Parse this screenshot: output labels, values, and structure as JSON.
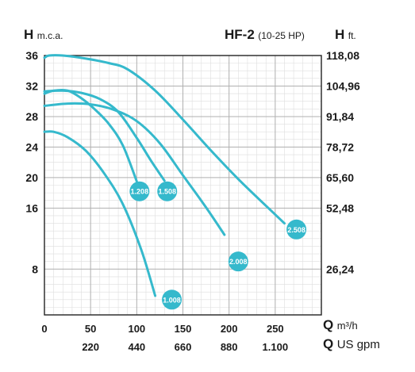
{
  "header": {
    "left_letter": "H",
    "left_unit": "m.c.a.",
    "model": "HF-2",
    "model_range": "(10-25 HP)",
    "right_letter": "H",
    "right_unit": "ft."
  },
  "axes_labels": {
    "q_letter": "Q",
    "q_unit_m3h": "m³/h",
    "q_unit_gpm": "US gpm"
  },
  "chart_data": {
    "type": "line",
    "title": "HF-2 (10-25 HP)",
    "xlabel": "Q m³/h",
    "ylabel": "H m.c.a.",
    "xlim": [
      0,
      300
    ],
    "ylim": [
      2,
      36
    ],
    "grid": true,
    "x_ticks": [
      {
        "value": 0,
        "label": "0"
      },
      {
        "value": 50,
        "label": "50"
      },
      {
        "value": 100,
        "label": "100"
      },
      {
        "value": 150,
        "label": "150"
      },
      {
        "value": 200,
        "label": "200"
      },
      {
        "value": 250,
        "label": "250"
      }
    ],
    "x2_ticks": [
      {
        "value": 50,
        "label": "220"
      },
      {
        "value": 100,
        "label": "440"
      },
      {
        "value": 150,
        "label": "660"
      },
      {
        "value": 200,
        "label": "880"
      },
      {
        "value": 250,
        "label": "1.100"
      }
    ],
    "y_ticks": [
      {
        "value": 36,
        "label": "36"
      },
      {
        "value": 32,
        "label": "32"
      },
      {
        "value": 28,
        "label": "28"
      },
      {
        "value": 24,
        "label": "24"
      },
      {
        "value": 20,
        "label": "20"
      },
      {
        "value": 16,
        "label": "16"
      },
      {
        "value": 8,
        "label": "8"
      }
    ],
    "y2_ticks": [
      {
        "value": 36,
        "label": "118,08"
      },
      {
        "value": 32,
        "label": "104,96"
      },
      {
        "value": 28,
        "label": "91,84"
      },
      {
        "value": 24,
        "label": "78,72"
      },
      {
        "value": 20,
        "label": "65,60"
      },
      {
        "value": 16,
        "label": "52,48"
      },
      {
        "value": 8,
        "label": "26,24"
      }
    ],
    "series": [
      {
        "name": "1.008",
        "x": [
          0,
          10,
          25,
          45,
          65,
          85,
          105,
          120
        ],
        "y": [
          26,
          26,
          25.3,
          23.5,
          20.5,
          16.5,
          10.5,
          4.5
        ],
        "label_at": [
          138,
          4
        ]
      },
      {
        "name": "1.208",
        "x": [
          0,
          10,
          25,
          40,
          55,
          70,
          85,
          100
        ],
        "y": [
          31,
          31.4,
          31.4,
          30.4,
          28.9,
          27,
          24.2,
          19.5
        ],
        "label_at": [
          103,
          18.2
        ]
      },
      {
        "name": "1.508",
        "x": [
          0,
          20,
          40,
          60,
          80,
          100,
          115,
          130
        ],
        "y": [
          31.3,
          31.4,
          31.1,
          30.3,
          28.6,
          25.2,
          22.3,
          19.6
        ],
        "label_at": [
          133,
          18.2
        ]
      },
      {
        "name": "2.008",
        "x": [
          0,
          25,
          50,
          75,
          100,
          125,
          150,
          175,
          195
        ],
        "y": [
          29.4,
          29.7,
          29.6,
          28.9,
          27.4,
          24.5,
          20.3,
          16.1,
          12.5
        ],
        "label_at": [
          210,
          9
        ]
      },
      {
        "name": "2.508",
        "x": [
          0,
          5,
          20,
          45,
          70,
          90,
          120,
          150,
          180,
          210,
          240,
          260
        ],
        "y": [
          35.7,
          36,
          36,
          35.6,
          35,
          34.2,
          31.4,
          27.6,
          23.6,
          19.8,
          16.3,
          14
        ],
        "label_at": [
          273,
          13.2
        ]
      }
    ],
    "colors": {
      "curve": "#35b9cc",
      "grid_major": "#b0b0b0",
      "grid_minor": "#dedede",
      "text": "#1a1a1a"
    }
  }
}
